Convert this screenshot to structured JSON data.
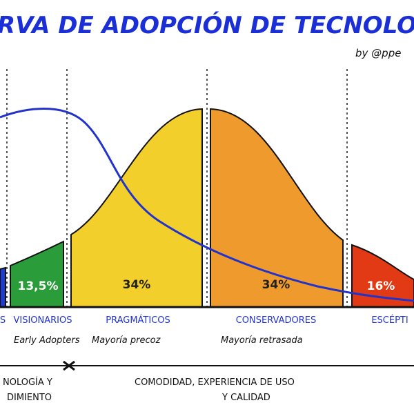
{
  "header": {
    "title": "RVA DE ADOPCIÓN DE TECNOLO",
    "byline": "by @ppe"
  },
  "segments": [
    {
      "share": "",
      "group": "S",
      "subtitle": ""
    },
    {
      "share": "13,5%",
      "group": "VISIONARIOS",
      "subtitle": "Early Adopters"
    },
    {
      "share": "34%",
      "group": "PRAGMÁTICOS",
      "subtitle": "Mayoría precoz"
    },
    {
      "share": "34%",
      "group": "CONSERVADORES",
      "subtitle": "Mayoría retrasada"
    },
    {
      "share": "16%",
      "group": "ESCÉPTI",
      "subtitle": ""
    }
  ],
  "footer": {
    "left": [
      "NOLOGÍA Y",
      "DIMIENTO"
    ],
    "right": [
      "COMODIDAD, EXPERIENCIA DE USO",
      "Y CALIDAD"
    ]
  }
}
